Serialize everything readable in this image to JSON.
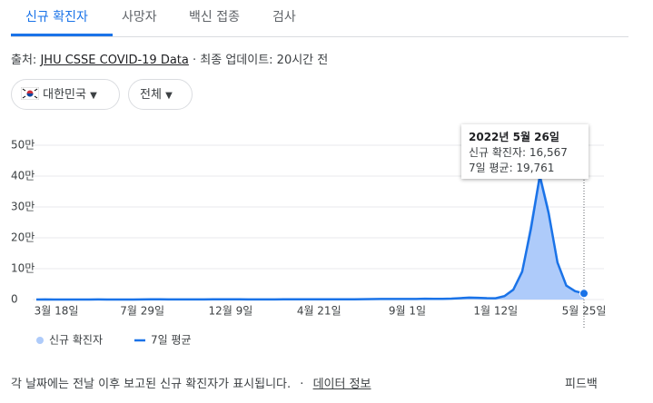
{
  "tabs": [
    "신규 확진자",
    "사망자",
    "백신 접종",
    "검사"
  ],
  "source": {
    "prefix": "출처:",
    "link": "JHU CSSE COVID-19 Data",
    "updated": "· 최종 업데이트: 20시간 전"
  },
  "filters": [
    "대한민국",
    "전체"
  ],
  "chart_data": {
    "type": "area-line",
    "categories": [
      null,
      null,
      "3월 18일",
      null,
      null,
      null,
      null,
      null,
      null,
      null,
      null,
      null,
      "7월 29일",
      null,
      null,
      null,
      null,
      null,
      null,
      null,
      null,
      null,
      "12월 9일",
      null,
      null,
      null,
      null,
      null,
      null,
      null,
      null,
      null,
      "4월 21일",
      null,
      null,
      null,
      null,
      null,
      null,
      null,
      null,
      null,
      "9월 1일",
      null,
      null,
      null,
      null,
      null,
      null,
      null,
      null,
      null,
      "1월 12일",
      null,
      null,
      null,
      null,
      null,
      null,
      null,
      null,
      null,
      "5월 25일"
    ],
    "series": [
      {
        "name": "신규 확진자",
        "color": "#aecbfa",
        "values": [
          50,
          600,
          100,
          50,
          60,
          40,
          50,
          300,
          150,
          100,
          100,
          80,
          400,
          1000,
          700,
          500,
          400,
          400,
          400,
          500,
          700,
          600,
          1000,
          600,
          500,
          450,
          400,
          500,
          600,
          650,
          600,
          700,
          600,
          650,
          700,
          700,
          650,
          1200,
          1600,
          1800,
          1700,
          1900,
          1800,
          2000,
          2500,
          2000,
          2000,
          3000,
          5000,
          6500,
          5500,
          4000,
          4000,
          13000,
          36000,
          100000,
          260000,
          420000,
          300000,
          110000,
          50000,
          30000,
          16567
        ]
      },
      {
        "name": "7일 평균",
        "color": "#1a73e8",
        "values": [
          40,
          500,
          120,
          60,
          55,
          45,
          50,
          250,
          160,
          110,
          100,
          90,
          350,
          900,
          720,
          520,
          420,
          400,
          410,
          480,
          650,
          620,
          900,
          650,
          520,
          460,
          420,
          480,
          580,
          630,
          620,
          680,
          620,
          640,
          680,
          690,
          660,
          1100,
          1500,
          1750,
          1700,
          1850,
          1800,
          1950,
          2400,
          2100,
          2050,
          2800,
          4500,
          6200,
          5600,
          4300,
          4100,
          11000,
          32000,
          90000,
          230000,
          400000,
          280000,
          120000,
          45000,
          27000,
          19761
        ]
      }
    ],
    "ylim": [
      0,
      530000
    ],
    "yticks": [
      {
        "value": 0,
        "label": "0"
      },
      {
        "value": 100000,
        "label": "10만"
      },
      {
        "value": 200000,
        "label": "20만"
      },
      {
        "value": 300000,
        "label": "30만"
      },
      {
        "value": 400000,
        "label": "40만"
      },
      {
        "value": 500000,
        "label": "50만"
      }
    ],
    "grid": true,
    "tooltip": {
      "title": "2022년 5월 26일",
      "lines": [
        "신규 확진자: 16,567",
        "7일 평균: 19,761"
      ]
    }
  },
  "footer": {
    "note": "각 날짜에는 전날 이후 보고된 신규 확진자가 표시됩니다.",
    "separator": "·",
    "link": "데이터 정보",
    "feedback": "피드백"
  }
}
